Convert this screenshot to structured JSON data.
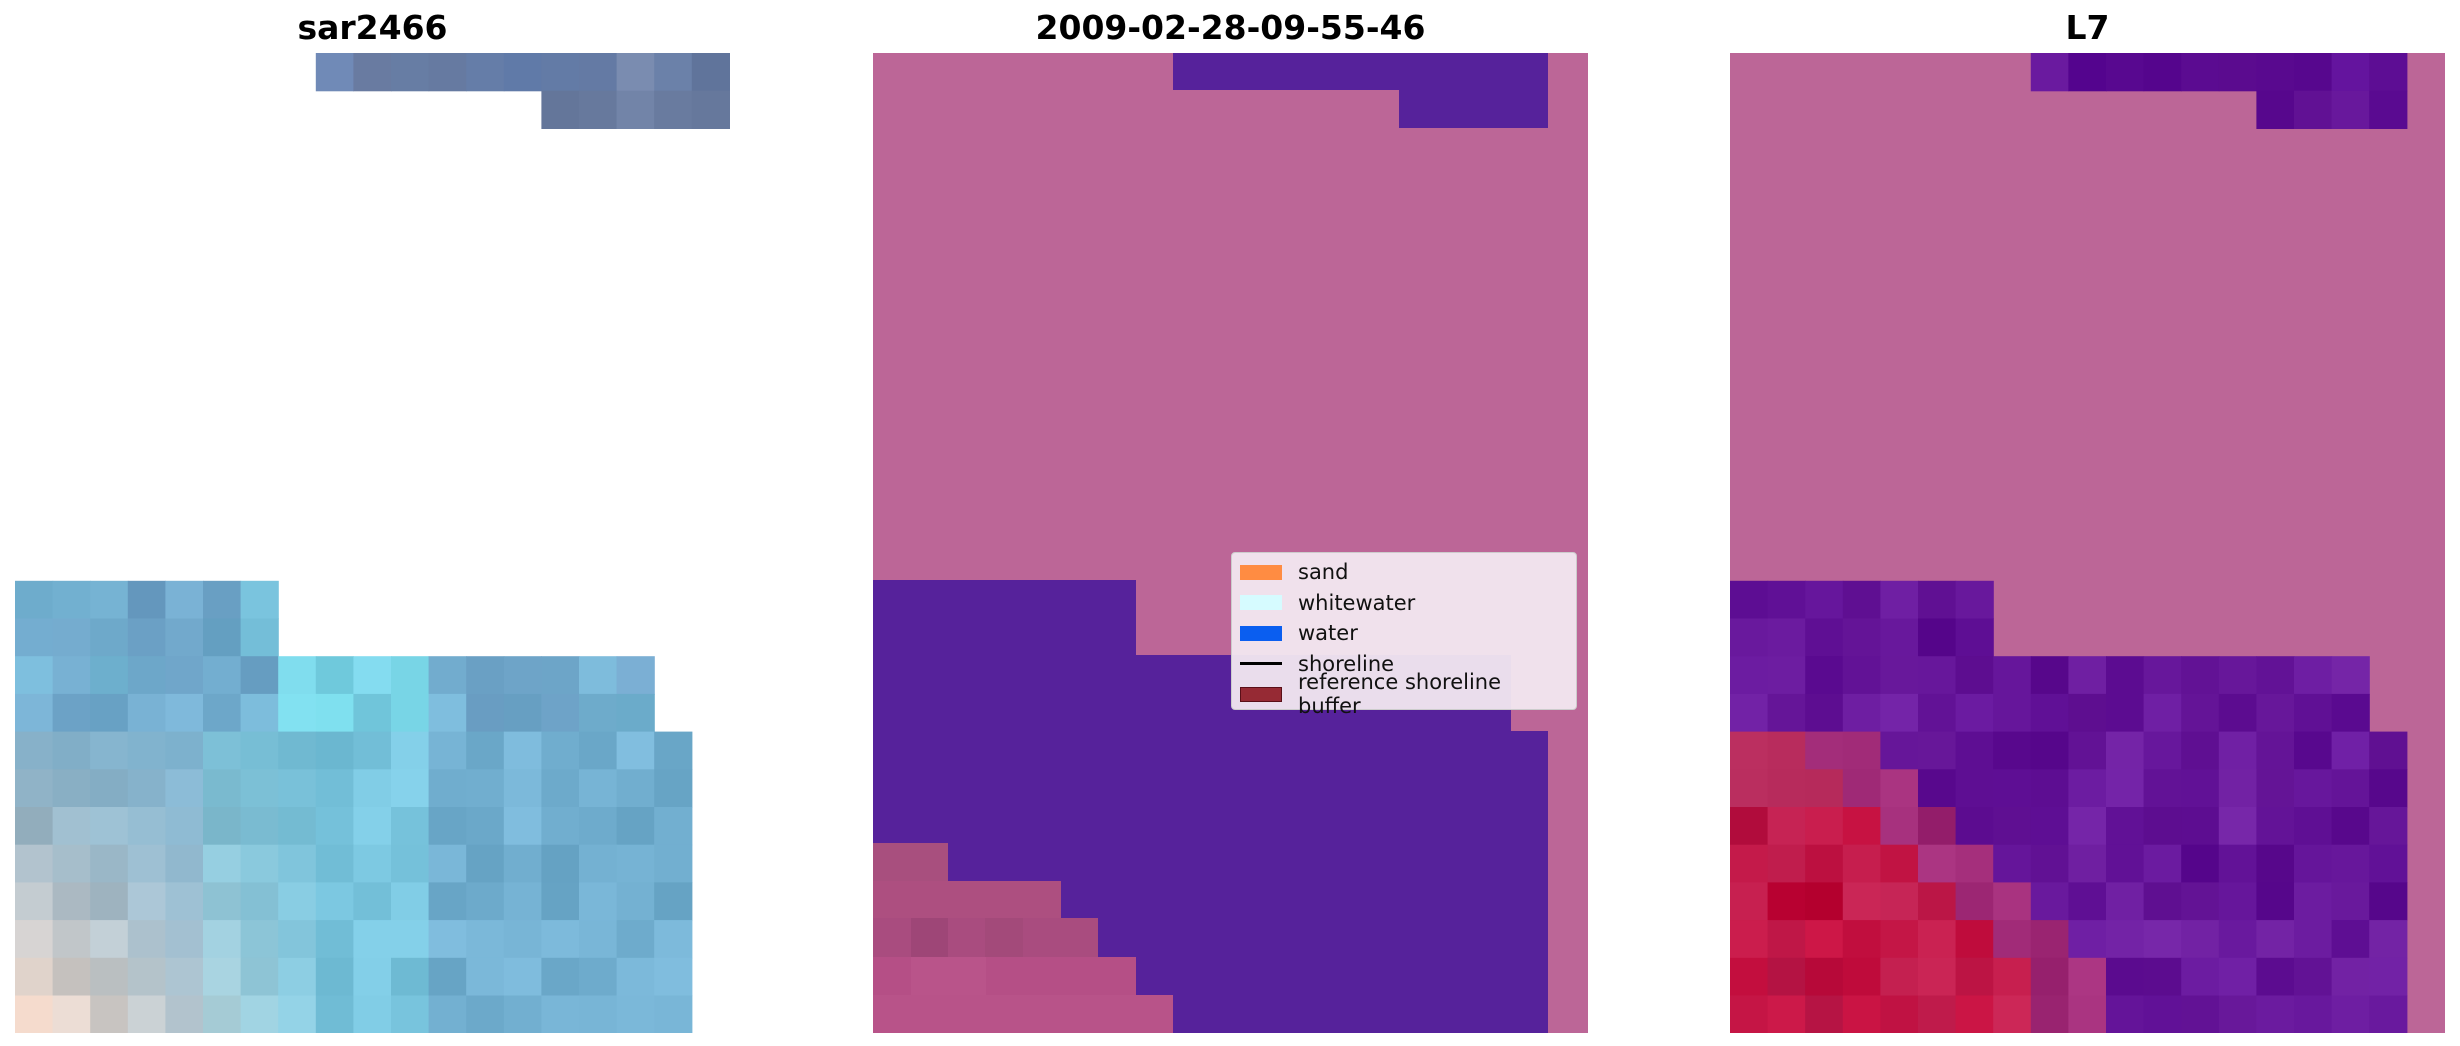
{
  "panels": [
    {
      "title": "sar2466"
    },
    {
      "title": "2009-02-28-09-55-46"
    },
    {
      "title": "L7"
    }
  ],
  "legend": {
    "items": [
      {
        "label": "sand",
        "type": "patch",
        "color": "#ff8c42"
      },
      {
        "label": "whitewater",
        "type": "patch",
        "color": "#d6fbff"
      },
      {
        "label": "water",
        "type": "patch",
        "color": "#0a5ef0"
      },
      {
        "label": "shoreline",
        "type": "line",
        "color": "#000000"
      },
      {
        "label": "reference shoreline buffer",
        "type": "patch",
        "color": "#962a34"
      }
    ]
  },
  "colors": {
    "background": "#ffffff",
    "land_overlay": "#bc6697",
    "water_overlay": "#56229b",
    "bottom_red": "#c00038"
  }
}
